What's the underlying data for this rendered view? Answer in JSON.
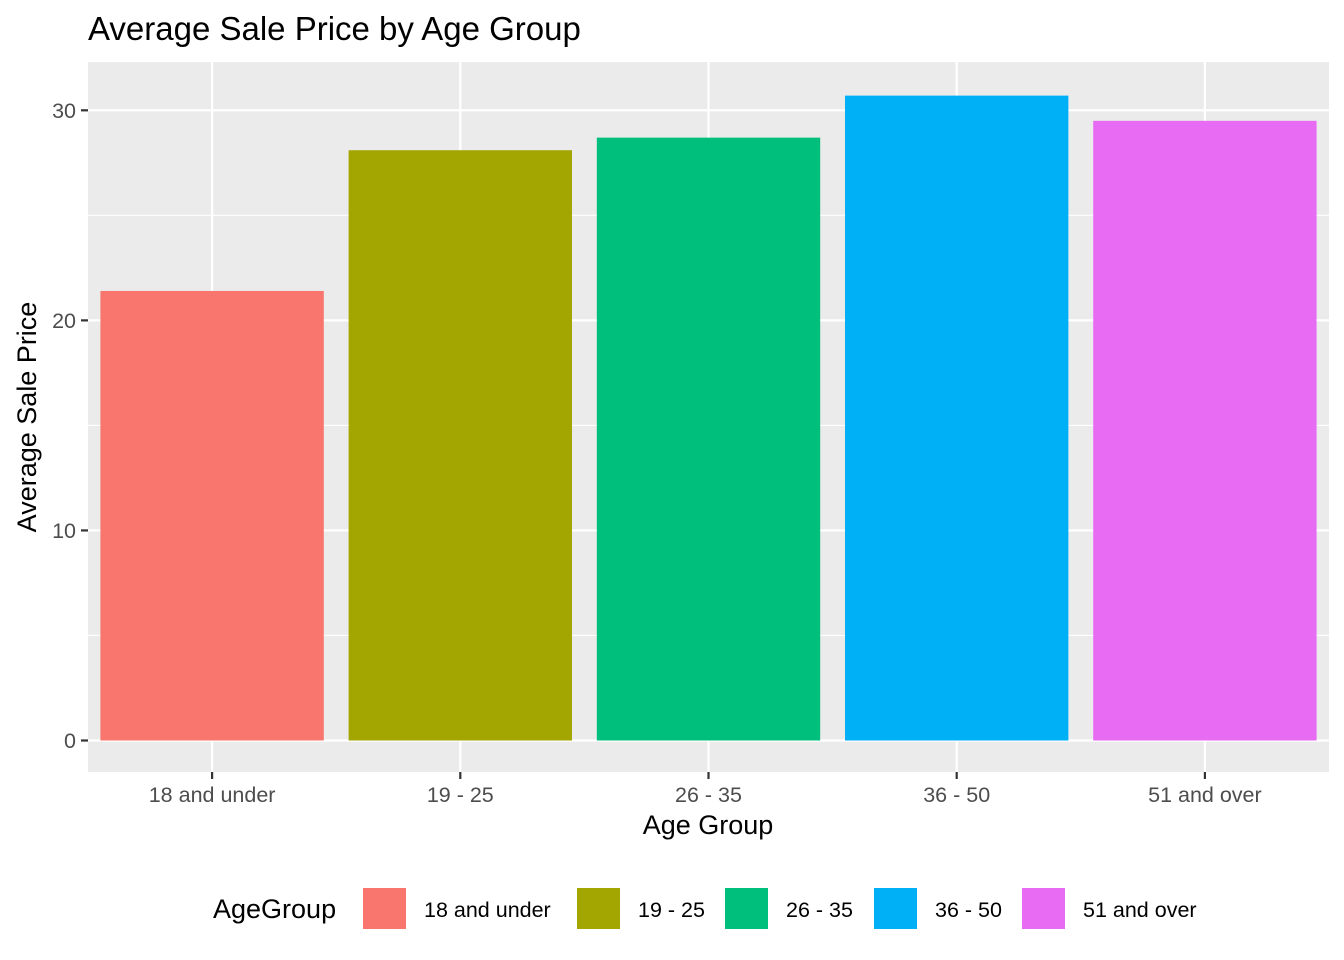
{
  "chart_data": {
    "type": "bar",
    "title": "Average Sale Price by Age Group",
    "xlabel": "Age Group",
    "ylabel": "Average Sale Price",
    "categories": [
      "18 and under",
      "19 - 25",
      "26 - 35",
      "36 - 50",
      "51 and over"
    ],
    "values": [
      21.4,
      28.1,
      28.7,
      30.7,
      29.5
    ],
    "colors": [
      "#F8766D",
      "#A3A500",
      "#00BF7D",
      "#00B0F6",
      "#E76BF3"
    ],
    "ylim": [
      -1.5,
      32.3
    ],
    "yticks": [
      0,
      10,
      20,
      30
    ],
    "grid": true,
    "legend": {
      "title": "AgeGroup",
      "position": "bottom",
      "entries": [
        "18 and under",
        "19 - 25",
        "26 - 35",
        "36 - 50",
        "51 and over"
      ]
    }
  }
}
